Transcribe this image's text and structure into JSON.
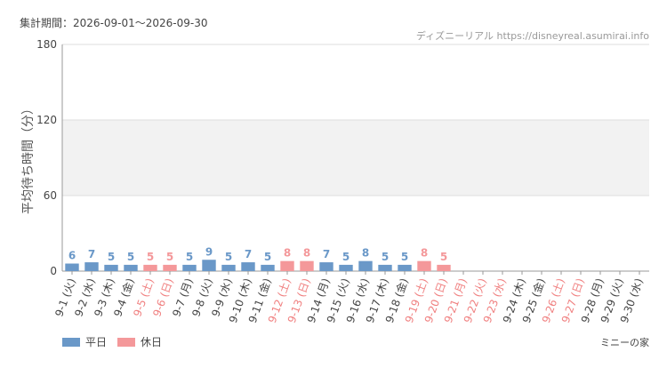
{
  "chart_data": {
    "type": "bar",
    "subtitle": "集計期間：2026-09-01～2026-09-30",
    "source": "ディズニーリアル https://disneyreal.asumirai.info",
    "title": "ミニーの家",
    "y_label": "平均待ち時間（分）",
    "categories": [
      "9-1 (火)",
      "9-2 (水)",
      "9-3 (木)",
      "9-4 (金)",
      "9-5 (土)",
      "9-6 (日)",
      "9-7 (月)",
      "9-8 (火)",
      "9-9 (水)",
      "9-10 (木)",
      "9-11 (金)",
      "9-12 (土)",
      "9-13 (日)",
      "9-14 (月)",
      "9-15 (火)",
      "9-16 (水)",
      "9-17 (木)",
      "9-18 (金)",
      "9-19 (土)",
      "9-20 (日)",
      "9-21 (月)",
      "9-22 (火)",
      "9-23 (水)",
      "9-24 (木)",
      "9-25 (金)",
      "9-26 (土)",
      "9-27 (日)",
      "9-28 (月)",
      "9-29 (火)",
      "9-30 (水)"
    ],
    "category_colors": [
      "#444",
      "#444",
      "#444",
      "#444",
      "#f08080",
      "#f08080",
      "#444",
      "#444",
      "#444",
      "#444",
      "#444",
      "#f08080",
      "#f08080",
      "#444",
      "#444",
      "#444",
      "#444",
      "#444",
      "#f08080",
      "#f08080",
      "#f08080",
      "#f08080",
      "#f08080",
      "#444",
      "#444",
      "#f08080",
      "#f08080",
      "#444",
      "#444",
      "#444"
    ],
    "series": [
      {
        "name": "平日",
        "color": "#6a98c8",
        "values": [
          6,
          7,
          5,
          5,
          null,
          null,
          5,
          9,
          5,
          7,
          5,
          null,
          null,
          7,
          5,
          8,
          5,
          5,
          null,
          null,
          null,
          null,
          null,
          null,
          null,
          null,
          null,
          null,
          null,
          null
        ]
      },
      {
        "name": "休日",
        "color": "#f4989a",
        "values": [
          null,
          null,
          null,
          null,
          5,
          5,
          null,
          null,
          null,
          null,
          null,
          8,
          8,
          null,
          null,
          null,
          null,
          null,
          8,
          5,
          null,
          null,
          null,
          null,
          null,
          null,
          null,
          null,
          null,
          null
        ]
      }
    ],
    "ylim": [
      0,
      180
    ],
    "yticks": [
      0,
      60,
      120,
      180
    ],
    "band": [
      60,
      120
    ],
    "grid": true
  }
}
